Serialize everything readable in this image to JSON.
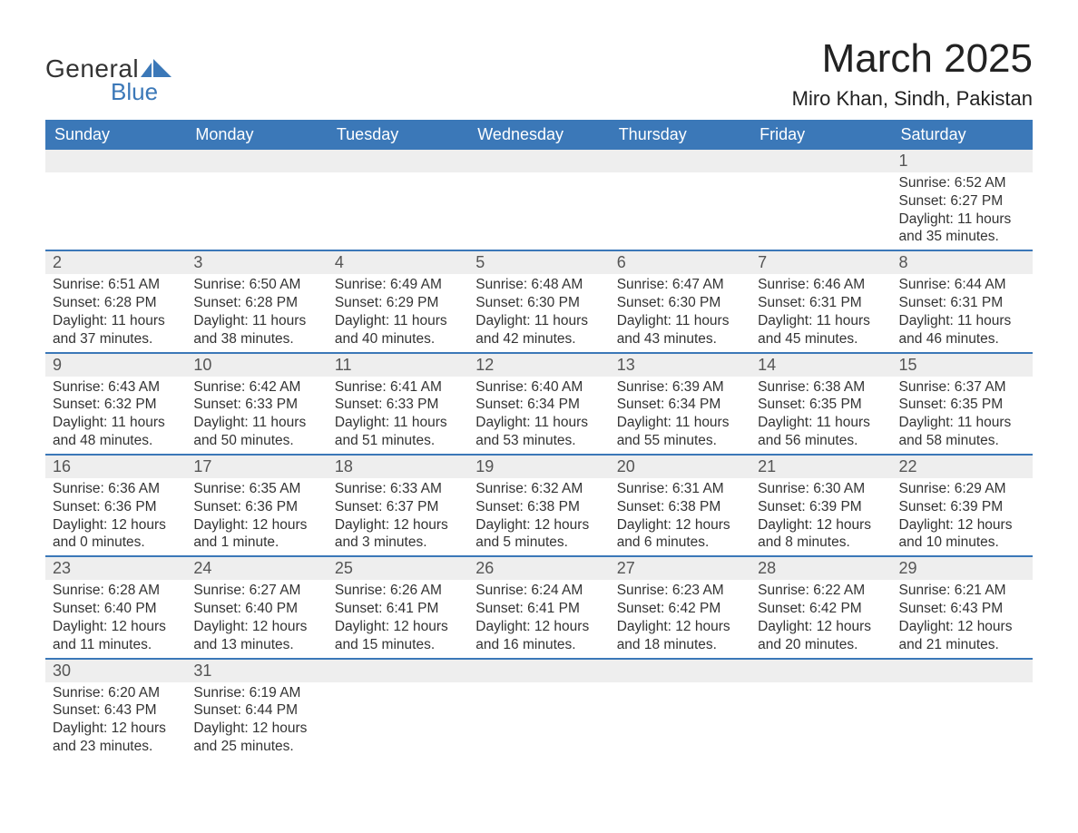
{
  "logo": {
    "general": "General",
    "blue": "Blue",
    "flag_color": "#3b78b8"
  },
  "title": "March 2025",
  "location": "Miro Khan, Sindh, Pakistan",
  "colors": {
    "header_bg": "#3b78b8",
    "header_text": "#ffffff",
    "daynum_bg": "#eeeeee",
    "row_border": "#3b78b8",
    "body_text": "#333333"
  },
  "weekdays": [
    "Sunday",
    "Monday",
    "Tuesday",
    "Wednesday",
    "Thursday",
    "Friday",
    "Saturday"
  ],
  "weeks": [
    [
      null,
      null,
      null,
      null,
      null,
      null,
      {
        "n": "1",
        "sr": "Sunrise: 6:52 AM",
        "ss": "Sunset: 6:27 PM",
        "d1": "Daylight: 11 hours",
        "d2": "and 35 minutes."
      }
    ],
    [
      {
        "n": "2",
        "sr": "Sunrise: 6:51 AM",
        "ss": "Sunset: 6:28 PM",
        "d1": "Daylight: 11 hours",
        "d2": "and 37 minutes."
      },
      {
        "n": "3",
        "sr": "Sunrise: 6:50 AM",
        "ss": "Sunset: 6:28 PM",
        "d1": "Daylight: 11 hours",
        "d2": "and 38 minutes."
      },
      {
        "n": "4",
        "sr": "Sunrise: 6:49 AM",
        "ss": "Sunset: 6:29 PM",
        "d1": "Daylight: 11 hours",
        "d2": "and 40 minutes."
      },
      {
        "n": "5",
        "sr": "Sunrise: 6:48 AM",
        "ss": "Sunset: 6:30 PM",
        "d1": "Daylight: 11 hours",
        "d2": "and 42 minutes."
      },
      {
        "n": "6",
        "sr": "Sunrise: 6:47 AM",
        "ss": "Sunset: 6:30 PM",
        "d1": "Daylight: 11 hours",
        "d2": "and 43 minutes."
      },
      {
        "n": "7",
        "sr": "Sunrise: 6:46 AM",
        "ss": "Sunset: 6:31 PM",
        "d1": "Daylight: 11 hours",
        "d2": "and 45 minutes."
      },
      {
        "n": "8",
        "sr": "Sunrise: 6:44 AM",
        "ss": "Sunset: 6:31 PM",
        "d1": "Daylight: 11 hours",
        "d2": "and 46 minutes."
      }
    ],
    [
      {
        "n": "9",
        "sr": "Sunrise: 6:43 AM",
        "ss": "Sunset: 6:32 PM",
        "d1": "Daylight: 11 hours",
        "d2": "and 48 minutes."
      },
      {
        "n": "10",
        "sr": "Sunrise: 6:42 AM",
        "ss": "Sunset: 6:33 PM",
        "d1": "Daylight: 11 hours",
        "d2": "and 50 minutes."
      },
      {
        "n": "11",
        "sr": "Sunrise: 6:41 AM",
        "ss": "Sunset: 6:33 PM",
        "d1": "Daylight: 11 hours",
        "d2": "and 51 minutes."
      },
      {
        "n": "12",
        "sr": "Sunrise: 6:40 AM",
        "ss": "Sunset: 6:34 PM",
        "d1": "Daylight: 11 hours",
        "d2": "and 53 minutes."
      },
      {
        "n": "13",
        "sr": "Sunrise: 6:39 AM",
        "ss": "Sunset: 6:34 PM",
        "d1": "Daylight: 11 hours",
        "d2": "and 55 minutes."
      },
      {
        "n": "14",
        "sr": "Sunrise: 6:38 AM",
        "ss": "Sunset: 6:35 PM",
        "d1": "Daylight: 11 hours",
        "d2": "and 56 minutes."
      },
      {
        "n": "15",
        "sr": "Sunrise: 6:37 AM",
        "ss": "Sunset: 6:35 PM",
        "d1": "Daylight: 11 hours",
        "d2": "and 58 minutes."
      }
    ],
    [
      {
        "n": "16",
        "sr": "Sunrise: 6:36 AM",
        "ss": "Sunset: 6:36 PM",
        "d1": "Daylight: 12 hours",
        "d2": "and 0 minutes."
      },
      {
        "n": "17",
        "sr": "Sunrise: 6:35 AM",
        "ss": "Sunset: 6:36 PM",
        "d1": "Daylight: 12 hours",
        "d2": "and 1 minute."
      },
      {
        "n": "18",
        "sr": "Sunrise: 6:33 AM",
        "ss": "Sunset: 6:37 PM",
        "d1": "Daylight: 12 hours",
        "d2": "and 3 minutes."
      },
      {
        "n": "19",
        "sr": "Sunrise: 6:32 AM",
        "ss": "Sunset: 6:38 PM",
        "d1": "Daylight: 12 hours",
        "d2": "and 5 minutes."
      },
      {
        "n": "20",
        "sr": "Sunrise: 6:31 AM",
        "ss": "Sunset: 6:38 PM",
        "d1": "Daylight: 12 hours",
        "d2": "and 6 minutes."
      },
      {
        "n": "21",
        "sr": "Sunrise: 6:30 AM",
        "ss": "Sunset: 6:39 PM",
        "d1": "Daylight: 12 hours",
        "d2": "and 8 minutes."
      },
      {
        "n": "22",
        "sr": "Sunrise: 6:29 AM",
        "ss": "Sunset: 6:39 PM",
        "d1": "Daylight: 12 hours",
        "d2": "and 10 minutes."
      }
    ],
    [
      {
        "n": "23",
        "sr": "Sunrise: 6:28 AM",
        "ss": "Sunset: 6:40 PM",
        "d1": "Daylight: 12 hours",
        "d2": "and 11 minutes."
      },
      {
        "n": "24",
        "sr": "Sunrise: 6:27 AM",
        "ss": "Sunset: 6:40 PM",
        "d1": "Daylight: 12 hours",
        "d2": "and 13 minutes."
      },
      {
        "n": "25",
        "sr": "Sunrise: 6:26 AM",
        "ss": "Sunset: 6:41 PM",
        "d1": "Daylight: 12 hours",
        "d2": "and 15 minutes."
      },
      {
        "n": "26",
        "sr": "Sunrise: 6:24 AM",
        "ss": "Sunset: 6:41 PM",
        "d1": "Daylight: 12 hours",
        "d2": "and 16 minutes."
      },
      {
        "n": "27",
        "sr": "Sunrise: 6:23 AM",
        "ss": "Sunset: 6:42 PM",
        "d1": "Daylight: 12 hours",
        "d2": "and 18 minutes."
      },
      {
        "n": "28",
        "sr": "Sunrise: 6:22 AM",
        "ss": "Sunset: 6:42 PM",
        "d1": "Daylight: 12 hours",
        "d2": "and 20 minutes."
      },
      {
        "n": "29",
        "sr": "Sunrise: 6:21 AM",
        "ss": "Sunset: 6:43 PM",
        "d1": "Daylight: 12 hours",
        "d2": "and 21 minutes."
      }
    ],
    [
      {
        "n": "30",
        "sr": "Sunrise: 6:20 AM",
        "ss": "Sunset: 6:43 PM",
        "d1": "Daylight: 12 hours",
        "d2": "and 23 minutes."
      },
      {
        "n": "31",
        "sr": "Sunrise: 6:19 AM",
        "ss": "Sunset: 6:44 PM",
        "d1": "Daylight: 12 hours",
        "d2": "and 25 minutes."
      },
      null,
      null,
      null,
      null,
      null
    ]
  ]
}
